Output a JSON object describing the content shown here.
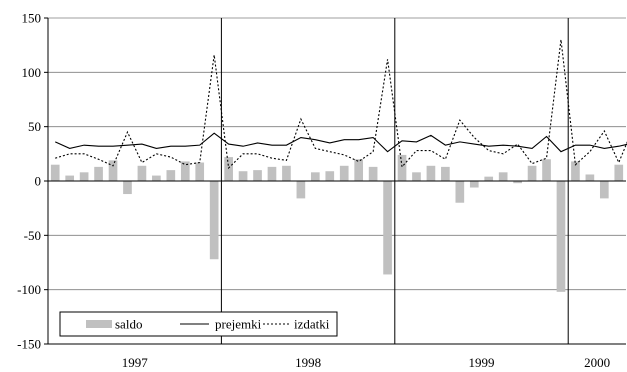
{
  "chart_data": {
    "type": "bar",
    "title": "",
    "xlabel": "",
    "ylabel": "",
    "ylim": [
      -150,
      150
    ],
    "yticks": [
      150,
      100,
      50,
      0,
      -50,
      -100,
      -150
    ],
    "x_start": "1997-01",
    "x_end": "2000-04",
    "year_labels": [
      "1997",
      "1998",
      "1999",
      "2000"
    ],
    "year_dividers_after": [
      "1997-12",
      "1998-12",
      "1999-12"
    ],
    "legend_position": "bottom-left",
    "colors": {
      "saldo": "#c0c0c0",
      "prejemki": "#000000",
      "izdatki": "#000000"
    },
    "series": [
      {
        "name": "saldo",
        "type": "bar",
        "values": [
          15,
          5,
          8,
          13,
          19,
          -12,
          14,
          5,
          10,
          18,
          17,
          -72,
          22,
          9,
          10,
          13,
          14,
          -16,
          8,
          9,
          14,
          20,
          13,
          -86,
          24,
          8,
          14,
          13,
          -20,
          -6,
          4,
          8,
          -2,
          14,
          20,
          -102,
          18,
          6,
          -16,
          15,
          -14,
          -4,
          12,
          10
        ]
      },
      {
        "name": "prejemki",
        "type": "line",
        "dash": "solid",
        "values": [
          36,
          30,
          33,
          32,
          32,
          33,
          34,
          30,
          32,
          32,
          33,
          44,
          34,
          32,
          35,
          33,
          33,
          40,
          38,
          35,
          38,
          38,
          40,
          27,
          37,
          36,
          42,
          33,
          36,
          34,
          32,
          33,
          32,
          30,
          41,
          27,
          33,
          33,
          30,
          32,
          35,
          35,
          36,
          32
        ]
      },
      {
        "name": "izdatki",
        "type": "line",
        "dash": "dotted",
        "values": [
          21,
          25,
          25,
          20,
          14,
          45,
          17,
          25,
          22,
          15,
          17,
          116,
          12,
          25,
          25,
          21,
          19,
          57,
          30,
          27,
          24,
          18,
          27,
          112,
          13,
          28,
          28,
          20,
          56,
          40,
          28,
          25,
          34,
          16,
          21,
          130,
          15,
          27,
          46,
          17,
          49,
          39,
          24,
          27
        ]
      }
    ]
  }
}
